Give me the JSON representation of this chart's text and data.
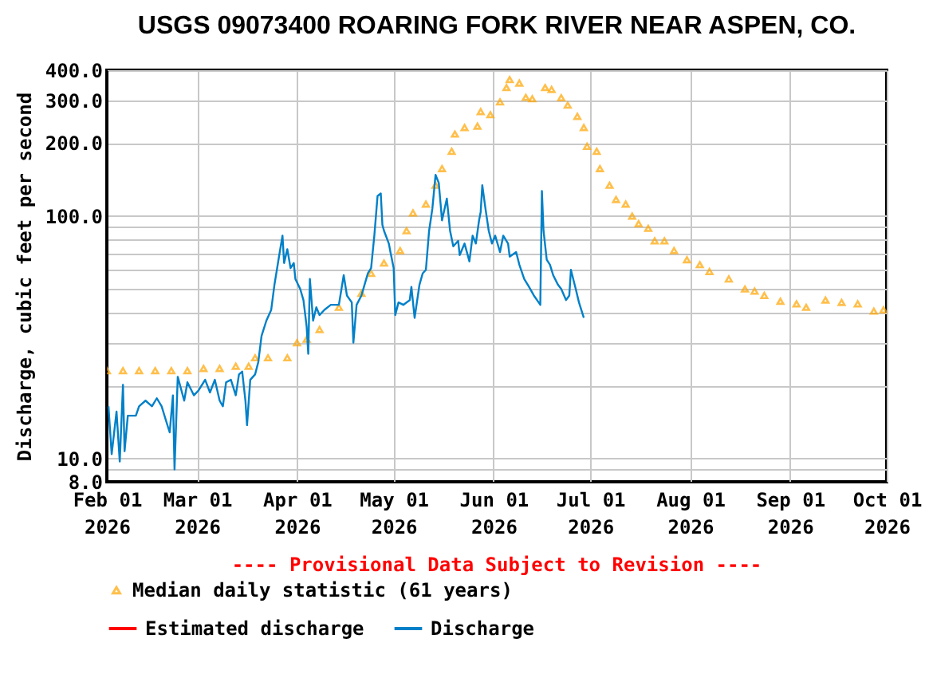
{
  "chart_data": {
    "type": "line",
    "title": "USGS 09073400 ROARING FORK RIVER NEAR ASPEN, CO.",
    "ylabel": "Discharge, cubic feet per second",
    "annotations": [
      "---- Provisional Data Subject to Revision ----"
    ],
    "log": "y",
    "grid": true,
    "legend": "bottom",
    "xlim": [
      "2026-02-01",
      "2026-10-01"
    ],
    "xticks": [
      {
        "value": "2026-02-01",
        "label": "Feb 01\n2026"
      },
      {
        "value": "2026-03-01",
        "label": "Mar 01\n2026"
      },
      {
        "value": "2026-04-01",
        "label": "Apr 01\n2026"
      },
      {
        "value": "2026-05-01",
        "label": "May 01\n2026"
      },
      {
        "value": "2026-06-01",
        "label": "Jun 01\n2026"
      },
      {
        "value": "2026-07-01",
        "label": "Jul 01\n2026"
      },
      {
        "value": "2026-08-01",
        "label": "Aug 01\n2026"
      },
      {
        "value": "2026-09-01",
        "label": "Sep 01\n2026"
      },
      {
        "value": "2026-10-01",
        "label": "Oct 01\n2026"
      }
    ],
    "ylim": [
      8,
      400
    ],
    "yticks": [
      {
        "value": 8,
        "label": "8.0"
      },
      {
        "value": 9,
        "label": null
      },
      {
        "value": 10,
        "label": "10.0"
      },
      {
        "value": 20,
        "label": null
      },
      {
        "value": 30,
        "label": null
      },
      {
        "value": 40,
        "label": null
      },
      {
        "value": 50,
        "label": null
      },
      {
        "value": 60,
        "label": null
      },
      {
        "value": 70,
        "label": null
      },
      {
        "value": 80,
        "label": null
      },
      {
        "value": 90,
        "label": null
      },
      {
        "value": 100,
        "label": "100.0"
      },
      {
        "value": 200,
        "label": "200.0"
      },
      {
        "value": 300,
        "label": "300.0"
      },
      {
        "value": 400,
        "label": "400.0"
      }
    ],
    "series": [
      {
        "name": "Median daily statistic (61 years)",
        "type": "scatter",
        "marker": "triangle",
        "color": "#ffa500",
        "x": [
          "2026-02-01",
          "2026-02-06",
          "2026-02-11",
          "2026-02-16",
          "2026-02-21",
          "2026-02-26",
          "2026-03-03",
          "2026-03-08",
          "2026-03-13",
          "2026-03-17",
          "2026-03-19",
          "2026-03-23",
          "2026-03-29",
          "2026-04-01",
          "2026-04-04",
          "2026-04-08",
          "2026-04-14",
          "2026-04-21",
          "2026-04-24",
          "2026-04-28",
          "2026-05-03",
          "2026-05-05",
          "2026-05-07",
          "2026-05-11",
          "2026-05-14",
          "2026-05-16",
          "2026-05-19",
          "2026-05-20",
          "2026-05-23",
          "2026-05-27",
          "2026-05-28",
          "2026-05-31",
          "2026-06-03",
          "2026-06-05",
          "2026-06-06",
          "2026-06-09",
          "2026-06-11",
          "2026-06-13",
          "2026-06-17",
          "2026-06-19",
          "2026-06-22",
          "2026-06-24",
          "2026-06-27",
          "2026-06-29",
          "2026-06-30",
          "2026-07-03",
          "2026-07-04",
          "2026-07-07",
          "2026-07-09",
          "2026-07-12",
          "2026-07-14",
          "2026-07-16",
          "2026-07-19",
          "2026-07-21",
          "2026-07-24",
          "2026-07-27",
          "2026-07-31",
          "2026-08-04",
          "2026-08-07",
          "2026-08-13",
          "2026-08-18",
          "2026-08-21",
          "2026-08-24",
          "2026-08-29",
          "2026-09-03",
          "2026-09-06",
          "2026-09-12",
          "2026-09-17",
          "2026-09-22",
          "2026-09-27",
          "2026-09-30"
        ],
        "values": [
          23,
          23,
          23,
          23,
          23,
          23,
          23.5,
          23.5,
          24,
          24,
          26,
          26,
          26,
          30,
          31,
          34,
          42,
          48,
          58,
          64,
          72,
          87,
          103,
          112,
          134,
          157,
          185,
          218,
          232,
          235,
          270,
          262,
          296,
          339,
          366,
          354,
          309,
          305,
          339,
          333,
          308,
          287,
          258,
          232,
          194,
          185,
          157,
          134,
          117,
          112,
          100,
          93,
          89,
          79,
          79,
          72,
          66,
          63,
          59,
          55,
          50,
          49,
          47,
          44.5,
          43.4,
          42,
          45,
          44,
          43.4,
          40.5,
          41
        ]
      },
      {
        "name": "Estimated discharge",
        "type": "line",
        "color": "#ff0000"
      },
      {
        "name": "Discharge",
        "type": "line",
        "color": "#0080c8",
        "x": [
          "2026-02-01T12:00",
          "2026-02-02T12:00",
          "2026-02-04",
          "2026-02-05",
          "2026-02-06",
          "2026-02-06T12:00",
          "2026-02-07T12:00",
          "2026-02-10",
          "2026-02-11",
          "2026-02-13",
          "2026-02-15",
          "2026-02-16T12:00",
          "2026-02-18",
          "2026-02-19T12:00",
          "2026-02-20T12:00",
          "2026-02-21T12:00",
          "2026-02-22",
          "2026-02-23",
          "2026-02-25",
          "2026-02-26",
          "2026-02-28",
          "2026-03-01T12:00",
          "2026-03-03T12:00",
          "2026-03-05",
          "2026-03-06T12:00",
          "2026-03-08",
          "2026-03-09",
          "2026-03-10",
          "2026-03-11T12:00",
          "2026-03-13",
          "2026-03-14",
          "2026-03-15",
          "2026-03-16",
          "2026-03-16T12:00",
          "2026-03-17T12:00",
          "2026-03-19",
          "2026-03-20",
          "2026-03-21",
          "2026-03-22T12:00",
          "2026-03-24",
          "2026-03-25",
          "2026-03-26T12:00",
          "2026-03-27T12:00",
          "2026-03-28",
          "2026-03-29",
          "2026-03-30",
          "2026-03-31",
          "2026-03-31T12:00",
          "2026-04-02",
          "2026-04-03",
          "2026-04-04",
          "2026-04-04T12:00",
          "2026-04-05",
          "2026-04-06",
          "2026-04-07",
          "2026-04-08",
          "2026-04-09T12:00",
          "2026-04-11T12:00",
          "2026-04-14",
          "2026-04-15T12:00",
          "2026-04-16T12:00",
          "2026-04-18",
          "2026-04-18T12:00",
          "2026-04-19T12:00",
          "2026-04-21",
          "2026-04-23",
          "2026-04-24",
          "2026-04-25",
          "2026-04-26",
          "2026-04-27",
          "2026-04-27T12:00",
          "2026-04-28",
          "2026-04-29T12:00",
          "2026-04-30",
          "2026-05-01",
          "2026-05-01T12:00",
          "2026-05-02T12:00",
          "2026-05-04",
          "2026-05-06",
          "2026-05-06T12:00",
          "2026-05-07T12:00",
          "2026-05-09",
          "2026-05-10",
          "2026-05-11",
          "2026-05-12",
          "2026-05-13",
          "2026-05-14",
          "2026-05-15",
          "2026-05-16",
          "2026-05-17T12:00",
          "2026-05-18T12:00",
          "2026-05-19T12:00",
          "2026-05-21",
          "2026-05-21T12:00",
          "2026-05-23",
          "2026-05-24T12:00",
          "2026-05-25T12:00",
          "2026-05-26T12:00",
          "2026-05-27T12:00",
          "2026-05-28",
          "2026-05-28T12:00",
          "2026-05-29T12:00",
          "2026-05-30T12:00",
          "2026-05-31T12:00",
          "2026-06-01T12:00",
          "2026-06-03",
          "2026-06-04",
          "2026-06-05T12:00",
          "2026-06-06",
          "2026-06-08",
          "2026-06-09",
          "2026-06-10T12:00",
          "2026-06-12",
          "2026-06-13T12:00",
          "2026-06-15",
          "2026-06-15T12:00",
          "2026-06-16",
          "2026-06-16T12:00",
          "2026-06-17T12:00",
          "2026-06-18T12:00",
          "2026-06-19T12:00",
          "2026-06-21",
          "2026-06-22",
          "2026-06-23T12:00",
          "2026-06-24T12:00",
          "2026-06-25",
          "2026-06-26T12:00",
          "2026-06-27T12:00",
          "2026-06-29"
        ],
        "values": [
          16.4,
          10.4,
          15.6,
          9.7,
          20.1,
          10.7,
          15,
          15,
          16.4,
          17.3,
          16.4,
          17.7,
          16.4,
          14.1,
          12.8,
          18.2,
          9,
          21.7,
          17.3,
          20.6,
          18.2,
          19.1,
          21.1,
          18.7,
          21.1,
          17.3,
          16.4,
          20.6,
          21.1,
          18.2,
          22.2,
          22.8,
          17.3,
          13.7,
          21.1,
          22.2,
          25,
          32,
          37,
          41,
          52,
          69,
          83,
          64,
          73,
          61,
          64,
          55,
          50,
          45,
          35,
          27,
          55,
          37,
          42,
          39,
          41,
          43,
          43,
          57,
          47,
          44,
          30,
          43,
          47,
          58,
          61,
          83,
          121,
          124,
          92,
          87,
          77,
          71,
          61,
          39,
          44,
          43,
          45,
          51,
          38,
          52,
          58,
          60,
          87,
          107,
          148,
          137,
          96,
          118,
          87,
          75,
          79,
          69,
          77,
          65,
          83,
          77,
          96,
          104,
          134,
          107,
          87,
          77,
          83,
          71,
          83,
          77,
          68,
          71,
          63,
          55,
          51,
          47,
          44,
          43,
          127,
          87,
          66,
          63,
          57,
          52,
          50,
          45,
          47,
          60,
          50,
          44,
          38
        ]
      }
    ]
  }
}
